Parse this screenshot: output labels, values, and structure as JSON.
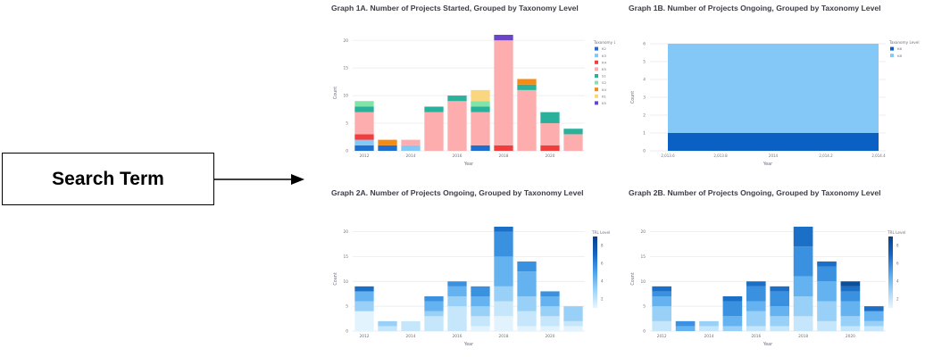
{
  "search_box": {
    "label": "Search Term"
  },
  "panels": [
    {
      "title": "Graph 1A. Number of Projects Started, Grouped by Taxonomy Level"
    },
    {
      "title": "Graph 1B. Number of Projects Ongoing, Grouped by Taxonomy Level"
    },
    {
      "title": "Graph 2A. Number of Projects Ongoing, Grouped by Taxonomy Level"
    },
    {
      "title": "Graph 2B. Number of Projects Ongoing, Grouped by Taxonomy Level"
    }
  ],
  "chart_data": [
    {
      "type": "bar",
      "stacked": true,
      "title": "Graph 1A. Number of Projects Started, Grouped by Taxonomy Level",
      "xlabel": "Year",
      "ylabel": "Count",
      "ylim": [
        0,
        21
      ],
      "yticks": [
        0,
        5,
        10,
        15,
        20
      ],
      "categories": [
        "2012",
        "2013",
        "2014",
        "2015",
        "2016",
        "2017",
        "2018",
        "2019",
        "2020",
        "2021"
      ],
      "xtick_labels": [
        "2012",
        "",
        "2014",
        "",
        "2016",
        "",
        "2018",
        "",
        "2020",
        ""
      ],
      "legend_title": "Taxonomy Level",
      "legend_position": "right",
      "grid": true,
      "series": [
        {
          "name": "K2",
          "color": "#1f6fd1",
          "values": [
            1,
            1,
            0,
            0,
            0,
            1,
            0,
            0,
            0,
            0
          ]
        },
        {
          "name": "K3",
          "color": "#84c8f7",
          "values": [
            1,
            0,
            1,
            0,
            0,
            0,
            0,
            0,
            0,
            0
          ]
        },
        {
          "name": "K4",
          "color": "#f23d3d",
          "values": [
            1,
            0,
            0,
            0,
            0,
            0,
            1,
            0,
            1,
            0
          ]
        },
        {
          "name": "K5",
          "color": "#fdadad",
          "values": [
            4,
            0,
            1,
            7,
            9,
            6,
            19,
            11,
            4,
            3
          ]
        },
        {
          "name": "S1",
          "color": "#2ab09b",
          "values": [
            1,
            0,
            0,
            1,
            1,
            1,
            0,
            1,
            2,
            1
          ]
        },
        {
          "name": "S2",
          "color": "#80e4a8",
          "values": [
            1,
            0,
            0,
            0,
            0,
            1,
            0,
            0,
            0,
            0
          ]
        },
        {
          "name": "K4",
          "color": "#f58b12",
          "values": [
            0,
            1,
            0,
            0,
            0,
            0,
            0,
            1,
            0,
            0
          ]
        },
        {
          "name": "K1",
          "color": "#f9d67f",
          "values": [
            0,
            0,
            0,
            0,
            0,
            2,
            0,
            0,
            0,
            0
          ]
        },
        {
          "name": "K5",
          "color": "#6b45c6",
          "values": [
            0,
            0,
            0,
            0,
            0,
            0,
            1,
            0,
            0,
            0
          ]
        }
      ]
    },
    {
      "type": "area",
      "stacked": true,
      "title": "Graph 1B. Number of Projects Ongoing, Grouped by Taxonomy Level",
      "xlabel": "Year",
      "ylabel": "Count",
      "ylim": [
        0,
        6
      ],
      "yticks": [
        0,
        1,
        2,
        3,
        4,
        5,
        6
      ],
      "xlim": [
        2013.5,
        2014.5
      ],
      "x": [
        2013.5,
        2014.5
      ],
      "xtick_labels": [
        "2,013.6",
        "2,013.8",
        "2014",
        "2,014.2",
        "2,014.4"
      ],
      "legend_title": "Taxonomy Level",
      "legend_position": "right",
      "grid": true,
      "series": [
        {
          "name": "K6",
          "color": "#0a60c3",
          "values": [
            1,
            1
          ]
        },
        {
          "name": "K8",
          "color": "#84c8f7",
          "values": [
            5,
            5
          ]
        }
      ]
    },
    {
      "type": "bar",
      "stacked": true,
      "title": "Graph 2A. Number of Projects Ongoing, Grouped by Taxonomy Level",
      "xlabel": "Year",
      "ylabel": "Count",
      "ylim": [
        0,
        21
      ],
      "yticks": [
        0,
        5,
        10,
        15,
        20
      ],
      "categories": [
        "2012",
        "2013",
        "2014",
        "2015",
        "2016",
        "2017",
        "2018",
        "2019",
        "2020",
        "2021"
      ],
      "xtick_labels": [
        "2012",
        "",
        "2014",
        "",
        "2016",
        "",
        "2018",
        "",
        "2020",
        ""
      ],
      "legend_title": "TRL Level",
      "legend_position": "right",
      "colorbar": {
        "min": 1,
        "max": 9,
        "ticks": [
          8,
          6,
          4,
          2
        ]
      },
      "series": [
        {
          "name": "1",
          "color": "#e3f3fd",
          "values": [
            4,
            0,
            0,
            0,
            0,
            1,
            3,
            1,
            1,
            1
          ]
        },
        {
          "name": "2",
          "color": "#c5e6fb",
          "values": [
            0,
            1,
            2,
            3,
            5,
            2,
            3,
            3,
            2,
            1
          ]
        },
        {
          "name": "3",
          "color": "#99d0f7",
          "values": [
            2,
            1,
            0,
            1,
            2,
            2,
            3,
            3,
            2,
            3
          ]
        },
        {
          "name": "4",
          "color": "#64b3f0",
          "values": [
            2,
            0,
            0,
            2,
            2,
            2,
            6,
            5,
            2,
            0
          ]
        },
        {
          "name": "5",
          "color": "#3a91e0",
          "values": [
            0,
            0,
            0,
            1,
            1,
            2,
            5,
            2,
            1,
            0
          ]
        },
        {
          "name": "6",
          "color": "#1c6fc7",
          "values": [
            1,
            0,
            0,
            0,
            0,
            0,
            1,
            0,
            0,
            0
          ]
        },
        {
          "name": "7",
          "color": "#0a4f9e",
          "values": [
            0,
            0,
            0,
            0,
            0,
            0,
            0,
            0,
            0,
            0
          ]
        },
        {
          "name": "8",
          "color": "#05356d",
          "values": [
            0,
            0,
            0,
            0,
            0,
            0,
            0,
            0,
            0,
            0
          ]
        }
      ]
    },
    {
      "type": "bar",
      "stacked": true,
      "title": "Graph 2B. Number of Projects Ongoing, Grouped by Taxonomy Level",
      "xlabel": "Year",
      "ylabel": "Count",
      "ylim": [
        0,
        21
      ],
      "yticks": [
        0,
        5,
        10,
        15,
        20
      ],
      "categories": [
        "2012",
        "2013",
        "2014",
        "2015",
        "2016",
        "2017",
        "2018",
        "2019",
        "2020",
        "2021"
      ],
      "xtick_labels": [
        "2012",
        "",
        "2014",
        "",
        "2016",
        "",
        "2018",
        "",
        "2020",
        ""
      ],
      "legend_title": "TRL Level",
      "legend_position": "right",
      "colorbar": {
        "min": 1,
        "max": 9,
        "ticks": [
          8,
          6,
          4,
          2
        ]
      },
      "series": [
        {
          "name": "1",
          "color": "#c5e6fb",
          "values": [
            2,
            0,
            1,
            0,
            1,
            1,
            3,
            2,
            1,
            1
          ]
        },
        {
          "name": "2",
          "color": "#99d0f7",
          "values": [
            3,
            0,
            1,
            1,
            3,
            2,
            4,
            4,
            2,
            1
          ]
        },
        {
          "name": "3",
          "color": "#64b3f0",
          "values": [
            2,
            1,
            0,
            2,
            2,
            2,
            4,
            4,
            3,
            2
          ]
        },
        {
          "name": "4",
          "color": "#3a91e0",
          "values": [
            1,
            1,
            0,
            3,
            3,
            3,
            6,
            3,
            2,
            0
          ]
        },
        {
          "name": "5",
          "color": "#1c6fc7",
          "values": [
            1,
            0,
            0,
            1,
            1,
            1,
            4,
            1,
            1,
            1
          ]
        },
        {
          "name": "6",
          "color": "#0a4f9e",
          "values": [
            0,
            0,
            0,
            0,
            0,
            0,
            0,
            0,
            1,
            0
          ]
        }
      ]
    }
  ]
}
